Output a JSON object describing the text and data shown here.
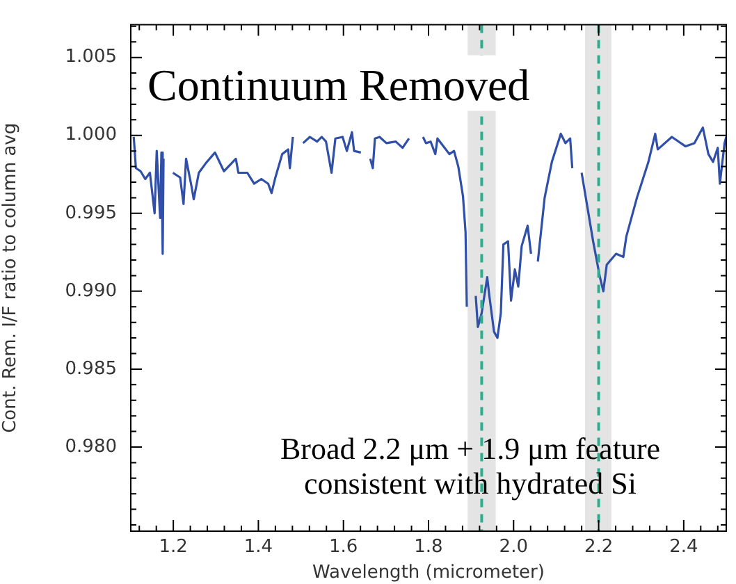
{
  "chart_data": {
    "type": "line",
    "xlabel": "Wavelength (micrometer)",
    "ylabel": "Cont. Rem. I/F ratio to column avg",
    "xlim": [
      1.1,
      2.5
    ],
    "ylim": [
      0.9746,
      1.0071
    ],
    "xticks": [
      1.2,
      1.4,
      1.6,
      1.8,
      {
        "value": 2,
        "label": "2.0"
      },
      2.2,
      2.4
    ],
    "yticks": [
      {
        "value": 0.98,
        "label": "0.980"
      },
      0.985,
      {
        "value": 0.99,
        "label": "0.990"
      },
      0.995,
      {
        "value": 1,
        "label": "1.000"
      },
      1.005
    ],
    "grid": false,
    "legend": false,
    "marker": "none",
    "line_style": "solid",
    "series": [
      {
        "color": "#2f4fa8",
        "x": [
          1.107,
          1.112,
          1.123,
          1.134,
          1.145,
          1.156,
          1.161,
          1.169,
          1.172,
          1.175,
          1.177,
          1.188,
          1.199,
          1.216,
          1.224,
          1.23,
          1.243,
          1.248,
          1.26,
          1.276,
          1.298,
          1.319,
          1.347,
          1.353,
          1.374,
          1.39,
          1.407,
          1.423,
          1.431,
          1.44,
          1.456,
          1.47,
          1.474,
          1.481,
          1.493,
          1.505,
          1.521,
          1.538,
          1.549,
          1.559,
          1.572,
          1.581,
          1.598,
          1.608,
          1.62,
          1.625,
          1.641,
          1.652,
          1.663,
          1.669,
          1.674,
          1.685,
          1.701,
          1.723,
          1.739,
          1.754,
          1.77,
          1.787,
          1.794,
          1.805,
          1.816,
          1.821,
          1.838,
          1.849,
          1.86,
          1.87,
          1.881,
          1.887,
          1.89,
          1.9,
          1.911,
          1.916,
          1.925,
          1.933,
          1.938,
          1.943,
          1.954,
          1.962,
          1.97,
          1.976,
          1.987,
          1.994,
          2.003,
          2.011,
          2.019,
          2.033,
          2.041,
          2.049,
          2.057,
          2.073,
          2.09,
          2.111,
          2.122,
          2.133,
          2.138,
          2.149,
          2.16,
          2.171,
          2.187,
          2.203,
          2.211,
          2.219,
          2.241,
          2.258,
          2.265,
          2.29,
          2.317,
          2.333,
          2.339,
          2.372,
          2.404,
          2.425,
          2.445,
          2.458,
          2.469,
          2.48,
          2.485,
          2.496,
          2.5
        ],
        "values": [
          0.9999,
          0.9979,
          0.9977,
          0.9972,
          0.9976,
          0.995,
          0.999,
          0.9947,
          0.9989,
          0.9924,
          0.9985,
          null,
          0.9976,
          0.9973,
          0.9956,
          0.9985,
          0.9967,
          0.9959,
          0.9976,
          0.9982,
          0.9989,
          0.9977,
          0.9985,
          0.9976,
          0.9976,
          0.9969,
          0.9972,
          0.9969,
          0.9963,
          0.9973,
          0.9988,
          0.9991,
          0.9979,
          0.9999,
          null,
          0.9995,
          0.9999,
          0.9996,
          0.9999,
          0.9996,
          0.9976,
          0.9998,
          0.9999,
          0.999,
          1.0002,
          0.999,
          0.9989,
          null,
          0.9985,
          0.9979,
          0.9998,
          0.9999,
          0.9995,
          0.9996,
          0.9992,
          0.9998,
          null,
          0.9999,
          0.9995,
          0.9996,
          0.9988,
          0.9998,
          0.9992,
          0.9988,
          0.999,
          0.998,
          0.9961,
          0.9938,
          0.989,
          null,
          0.9897,
          0.9877,
          0.9886,
          0.99,
          0.9909,
          0.9897,
          0.9874,
          0.987,
          0.9886,
          0.993,
          0.9932,
          0.9894,
          0.9914,
          0.9903,
          0.9929,
          0.9942,
          0.9924,
          null,
          0.9919,
          0.996,
          0.9983,
          1.0001,
          0.9995,
          0.9998,
          0.9979,
          null,
          0.9976,
          0.9958,
          0.9932,
          0.9909,
          0.99,
          0.9917,
          0.9924,
          0.9922,
          0.9935,
          0.996,
          0.9983,
          1.0001,
          0.9991,
          0.9999,
          0.9993,
          0.9995,
          1.0005,
          0.9988,
          0.9983,
          0.9992,
          0.9969,
          0.9995,
          0.9999
        ]
      }
    ],
    "bands": [
      {
        "axis": "x",
        "from": 1.892,
        "to": 1.958,
        "color": "#e4e4e4"
      },
      {
        "axis": "x",
        "from": 2.168,
        "to": 2.23,
        "color": "#e4e4e4"
      }
    ],
    "ref_lines": [
      {
        "axis": "x",
        "value": 1.925,
        "color": "#2aae8e",
        "line_style": "dashed"
      },
      {
        "axis": "x",
        "value": 2.2,
        "color": "#2aae8e",
        "line_style": "dashed"
      }
    ],
    "annotations": [
      "Continuum Removed",
      "Broad 2.2 μm + 1.9 μm feature\nconsistent with hydrated Si"
    ]
  }
}
